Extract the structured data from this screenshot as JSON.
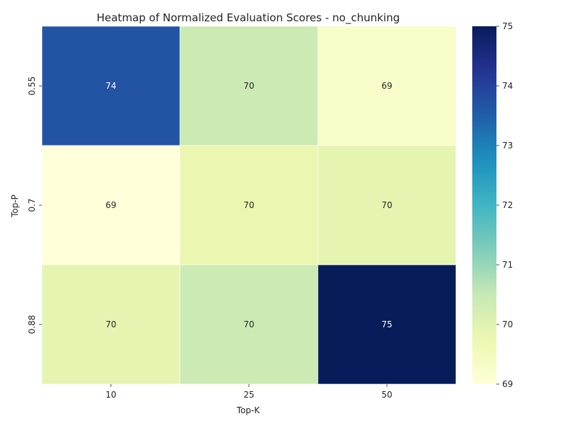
{
  "chart_data": {
    "type": "heatmap",
    "title": "Heatmap of Normalized Evaluation Scores - no_chunking",
    "xlabel": "Top-K",
    "ylabel": "Top-P",
    "x_categories": [
      "10",
      "25",
      "50"
    ],
    "y_categories": [
      "0.55",
      "0.7",
      "0.88"
    ],
    "values": [
      [
        73.7,
        70.4,
        69.3
      ],
      [
        69.0,
        69.8,
        69.9
      ],
      [
        69.9,
        70.4,
        75.0
      ]
    ],
    "cell_labels": [
      [
        "74",
        "70",
        "69"
      ],
      [
        "69",
        "70",
        "70"
      ],
      [
        "70",
        "70",
        "75"
      ]
    ],
    "colorbar": {
      "range": [
        69,
        75
      ],
      "ticks": [
        "69",
        "70",
        "71",
        "72",
        "73",
        "74",
        "75"
      ],
      "colormap": "YlGnBu"
    },
    "grid": false,
    "legend": "colorbar-right"
  }
}
